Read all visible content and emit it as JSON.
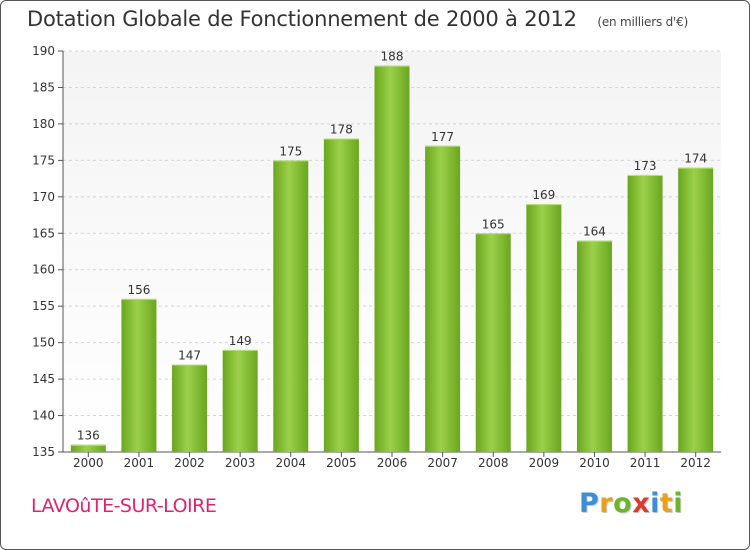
{
  "chart_data": {
    "type": "bar",
    "title": "Dotation Globale de Fonctionnement de 2000 à 2012",
    "unit": "(en milliers d'€)",
    "categories": [
      "2000",
      "2001",
      "2002",
      "2003",
      "2004",
      "2005",
      "2006",
      "2007",
      "2008",
      "2009",
      "2010",
      "2011",
      "2012"
    ],
    "values": [
      136,
      156,
      147,
      149,
      175,
      178,
      188,
      177,
      165,
      169,
      164,
      173,
      174
    ],
    "ylim": [
      135,
      190
    ],
    "yticks": [
      135,
      140,
      145,
      150,
      155,
      160,
      165,
      170,
      175,
      180,
      185,
      190
    ],
    "grid": true,
    "bar_color": "#7cbf2a"
  },
  "footer": {
    "commune": "LAVOûTE-SUR-LOIRE",
    "brand_letters": [
      {
        "ch": "P",
        "color": "#3a8fd6"
      },
      {
        "ch": "r",
        "color": "#e8a020"
      },
      {
        "ch": "o",
        "color": "#6cb52d"
      },
      {
        "ch": "x",
        "color": "#e03a2f"
      },
      {
        "ch": "i",
        "color": "#3a8fd6"
      },
      {
        "ch": "t",
        "color": "#e8a020"
      },
      {
        "ch": "i",
        "color": "#6cb52d"
      }
    ]
  }
}
